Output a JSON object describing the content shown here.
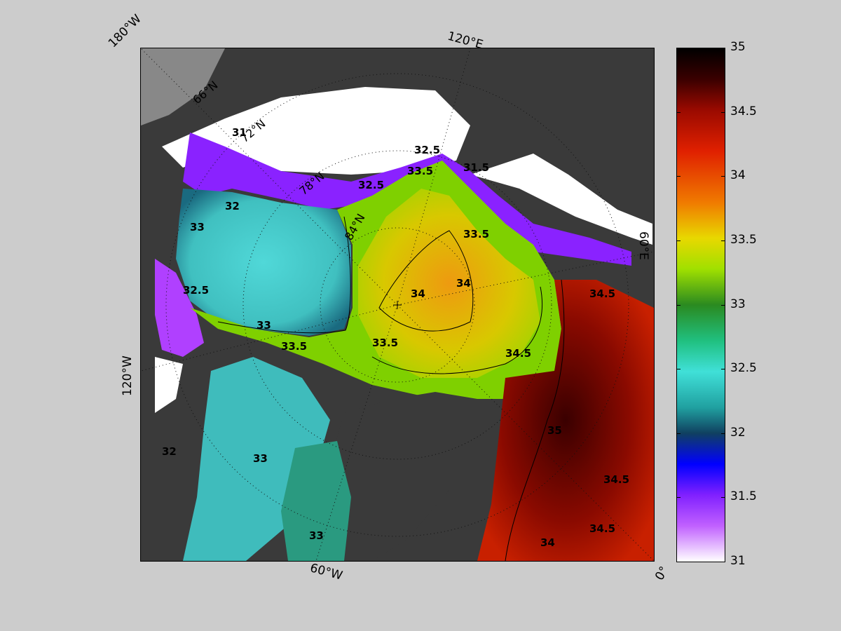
{
  "map": {
    "center_label": "North Pole",
    "edge_labels": {
      "top_left": "180°W",
      "top": "120°E",
      "right": "60°E",
      "left": "120°W",
      "bottom": "60°W",
      "bottom_right": "0°"
    },
    "latitude_labels": [
      "66°N",
      "72°N",
      "78°N",
      "84°N"
    ],
    "contour_labels": [
      "31",
      "31.5",
      "32",
      "32.5",
      "33",
      "33.5",
      "34",
      "34.5",
      "35"
    ]
  },
  "colorbar": {
    "ticks": [
      "35",
      "34.5",
      "34",
      "33.5",
      "33",
      "32.5",
      "32",
      "31.5",
      "31"
    ],
    "min": 31,
    "max": 35
  },
  "colors": {
    "background": "#cccccc",
    "land": "#3a3a3a",
    "ice": "#ffffff"
  }
}
